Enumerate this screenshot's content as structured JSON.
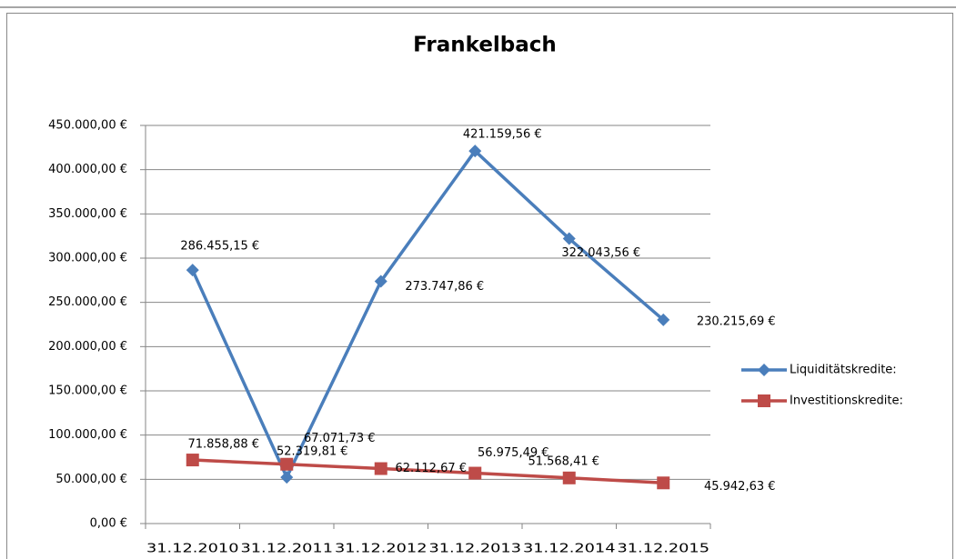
{
  "chart_data": {
    "type": "line",
    "title": "Frankelbach",
    "categories": [
      "31.12.2010",
      "31.12.2011",
      "31.12.2012",
      "31.12.2013",
      "31.12.2014",
      "31.12.2015"
    ],
    "series": [
      {
        "name": "Liquiditätskredite:",
        "color": "#4a7ebb",
        "marker": "diamond",
        "values": [
          286455.15,
          52319.81,
          273747.86,
          421159.56,
          322043.56,
          230215.69
        ],
        "value_labels": [
          "286.455,15 €",
          "52.319,81 €",
          "273.747,86 €",
          "421.159,56 €",
          "322.043,56 €",
          "230.215,69 €"
        ]
      },
      {
        "name": "Investitionskredite:",
        "color": "#be4b48",
        "marker": "square",
        "values": [
          71858.88,
          67071.73,
          62112.67,
          56975.49,
          51568.41,
          45942.63
        ],
        "value_labels": [
          "71.858,88 €",
          "67.071,73 €",
          "62.112,67 €",
          "56.975,49 €",
          "51.568,41 €",
          "45.942,63 €"
        ]
      }
    ],
    "ylim": [
      0,
      450000
    ],
    "yticks": [
      {
        "value": 0,
        "label": "0,00 €"
      },
      {
        "value": 50000,
        "label": "50.000,00 €"
      },
      {
        "value": 100000,
        "label": "100.000,00 €"
      },
      {
        "value": 150000,
        "label": "150.000,00 €"
      },
      {
        "value": 200000,
        "label": "200.000,00 €"
      },
      {
        "value": 250000,
        "label": "250.000,00 €"
      },
      {
        "value": 300000,
        "label": "300.000,00 €"
      },
      {
        "value": 350000,
        "label": "350.000,00 €"
      },
      {
        "value": 400000,
        "label": "400.000,00 €"
      },
      {
        "value": 450000,
        "label": "450.000,00 €"
      }
    ],
    "grid": true,
    "legend": "right"
  }
}
